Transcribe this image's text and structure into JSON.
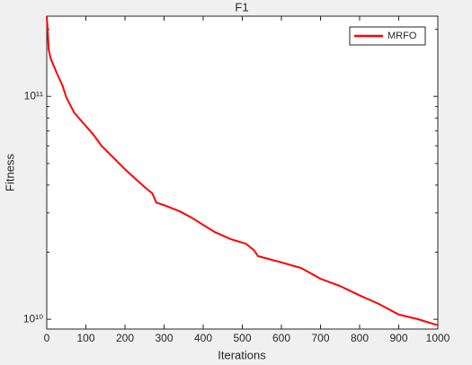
{
  "chart_data": {
    "type": "line",
    "title": "F1",
    "xlabel": "Iterations",
    "ylabel": "Fitness",
    "x": [
      0,
      2,
      5,
      10,
      25,
      40,
      50,
      70,
      100,
      120,
      140,
      170,
      200,
      230,
      250,
      270,
      280,
      300,
      340,
      370,
      400,
      430,
      470,
      510,
      530,
      540,
      600,
      650,
      700,
      750,
      800,
      850,
      900,
      950,
      1000
    ],
    "series": [
      {
        "name": "MRFO",
        "color": "#ff0000",
        "values": [
          228000000000.0,
          204000000000.0,
          162000000000.0,
          148000000000.0,
          128000000000.0,
          112000000000.0,
          99000000000.0,
          84600000000.0,
          73600000000.0,
          67100000000.0,
          60000000000.0,
          53200000000.0,
          47100000000.0,
          42200000000.0,
          39200000000.0,
          36700000000.0,
          33400000000.0,
          32500000000.0,
          30500000000.0,
          28600000000.0,
          26500000000.0,
          24600000000.0,
          22900000000.0,
          21800000000.0,
          20400000000.0,
          19200000000.0,
          18000000000.0,
          17000000000.0,
          15200000000.0,
          14100000000.0,
          12800000000.0,
          11700000000.0,
          10500000000.0,
          10000000000.0,
          9400000000.0
        ]
      }
    ],
    "xlim": [
      0,
      1000
    ],
    "xticks": [
      0,
      100,
      200,
      300,
      400,
      500,
      600,
      700,
      800,
      900,
      1000
    ],
    "ylim": [
      9040000000.0,
      229000000000.0
    ],
    "log_y": true,
    "yticks": [
      {
        "value": 10000000000.0,
        "label": "10¹⁰"
      },
      {
        "value": 100000000000.0,
        "label": "10¹¹"
      }
    ],
    "yminor_ticks": [
      20000000000.0,
      30000000000.0,
      40000000000.0,
      50000000000.0,
      60000000000.0,
      70000000000.0,
      80000000000.0,
      90000000000.0,
      200000000000.0
    ],
    "legend": "northeast"
  }
}
